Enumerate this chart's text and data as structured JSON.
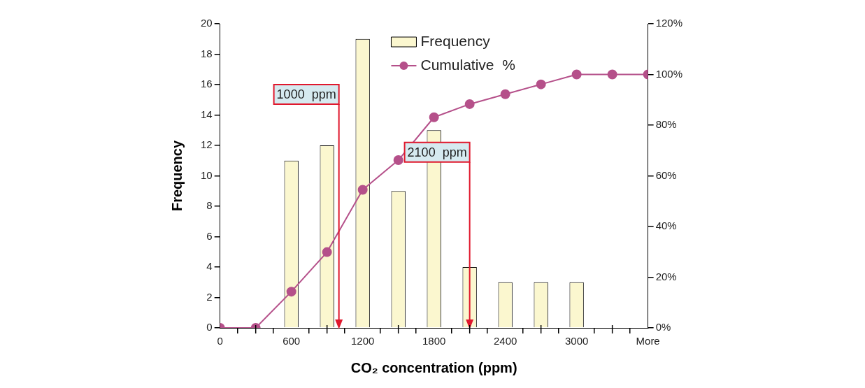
{
  "chart_data": {
    "type": "bar",
    "xlabel": "CO₂ concentration (ppm)",
    "ylabel": "Frequency",
    "x": [
      0,
      300,
      600,
      900,
      1200,
      1500,
      1800,
      2100,
      2400,
      2700,
      3000,
      3300,
      3600
    ],
    "xlim": [
      0,
      3600
    ],
    "xticks": [
      0,
      {
        "value": 300,
        "label": null
      },
      600,
      {
        "value": 900,
        "label": null
      },
      1200,
      {
        "value": 1500,
        "label": null
      },
      1800,
      {
        "value": 2100,
        "label": null
      },
      2400,
      {
        "value": 2700,
        "label": null
      },
      3000,
      {
        "value": 3300,
        "label": null
      },
      {
        "value": 3600,
        "label": "More"
      }
    ],
    "ylim": [
      0,
      20
    ],
    "yticks": [
      0,
      2,
      4,
      6,
      8,
      10,
      12,
      14,
      16,
      18,
      20
    ],
    "y2lim": [
      0,
      120
    ],
    "y2ticks": [
      {
        "value": 0,
        "label": "0%"
      },
      {
        "value": 20,
        "label": "20%"
      },
      {
        "value": 40,
        "label": "40%"
      },
      {
        "value": 60,
        "label": "60%"
      },
      {
        "value": 80,
        "label": "80%"
      },
      {
        "value": 100,
        "label": "100%"
      },
      {
        "value": 120,
        "label": "120%"
      }
    ],
    "series": [
      {
        "name": "Frequency",
        "color": "#fbf7cf",
        "values": [
          0,
          0,
          11,
          12,
          19,
          9,
          13,
          4,
          3,
          3,
          3,
          0,
          0
        ]
      },
      {
        "name": "Cumulative  %",
        "type": "line",
        "axis": "y2",
        "color": "#b5508a",
        "marker": "circle",
        "values": [
          0,
          0,
          14.3,
          29.9,
          54.5,
          66.2,
          83.1,
          88.3,
          92.2,
          96.1,
          100,
          100,
          100
        ]
      }
    ],
    "ref_lines": [
      {
        "axis": "x",
        "value": 1000,
        "label": "1000  ppm",
        "color": "#e0182d"
      },
      {
        "axis": "x",
        "value": 2100,
        "label": "2100  ppm",
        "color": "#e0182d"
      }
    ],
    "grid": false,
    "legend": "top"
  }
}
